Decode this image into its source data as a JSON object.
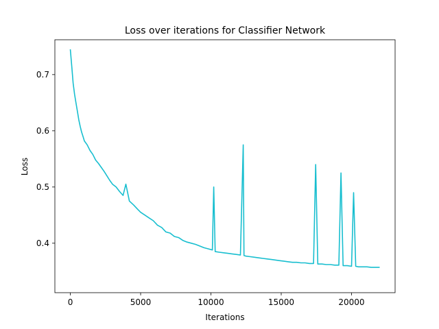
{
  "chart_data": {
    "type": "line",
    "title": "Loss over iterations for Classifier Network",
    "xlabel": "Iterations",
    "ylabel": "Loss",
    "xlim": [
      -1100,
      23100
    ],
    "ylim": [
      0.312,
      0.762
    ],
    "xticks": [
      0,
      5000,
      10000,
      15000,
      20000
    ],
    "yticks": [
      0.4,
      0.5,
      0.6,
      0.7
    ],
    "grid": false,
    "legend": "none",
    "series": [
      {
        "color": "#17becf",
        "x": [
          0,
          100,
          200,
          300,
          400,
          500,
          600,
          700,
          800,
          900,
          1000,
          1200,
          1400,
          1600,
          1800,
          2000,
          2200,
          2400,
          2600,
          2800,
          3000,
          3250,
          3500,
          3750,
          3950,
          4200,
          4500,
          4800,
          5000,
          5300,
          5600,
          5900,
          6200,
          6500,
          6800,
          7100,
          7400,
          7700,
          8000,
          8300,
          8600,
          8900,
          9200,
          9500,
          9800,
          10100,
          10200,
          10300,
          10600,
          10900,
          11200,
          11500,
          11800,
          12100,
          12300,
          12350,
          12500,
          12800,
          13100,
          13400,
          13700,
          14000,
          14300,
          14600,
          14900,
          15200,
          15500,
          15800,
          16100,
          16400,
          16700,
          17000,
          17300,
          17450,
          17600,
          17900,
          18200,
          18500,
          18800,
          19100,
          19250,
          19400,
          19700,
          20000,
          20150,
          20300,
          20500,
          20800,
          21100,
          21400,
          21700,
          22000
        ],
        "y": [
          0.745,
          0.715,
          0.685,
          0.665,
          0.65,
          0.635,
          0.62,
          0.608,
          0.598,
          0.59,
          0.582,
          0.575,
          0.565,
          0.558,
          0.548,
          0.542,
          0.535,
          0.528,
          0.52,
          0.512,
          0.505,
          0.5,
          0.492,
          0.485,
          0.505,
          0.475,
          0.468,
          0.46,
          0.455,
          0.45,
          0.445,
          0.44,
          0.432,
          0.428,
          0.42,
          0.418,
          0.412,
          0.41,
          0.405,
          0.402,
          0.4,
          0.398,
          0.395,
          0.392,
          0.39,
          0.388,
          0.5,
          0.385,
          0.384,
          0.383,
          0.382,
          0.381,
          0.38,
          0.379,
          0.575,
          0.378,
          0.377,
          0.376,
          0.375,
          0.374,
          0.373,
          0.372,
          0.371,
          0.37,
          0.369,
          0.368,
          0.367,
          0.366,
          0.366,
          0.365,
          0.365,
          0.364,
          0.364,
          0.54,
          0.363,
          0.363,
          0.362,
          0.362,
          0.361,
          0.361,
          0.525,
          0.36,
          0.36,
          0.359,
          0.49,
          0.359,
          0.358,
          0.358,
          0.358,
          0.357,
          0.357,
          0.357
        ]
      }
    ]
  }
}
